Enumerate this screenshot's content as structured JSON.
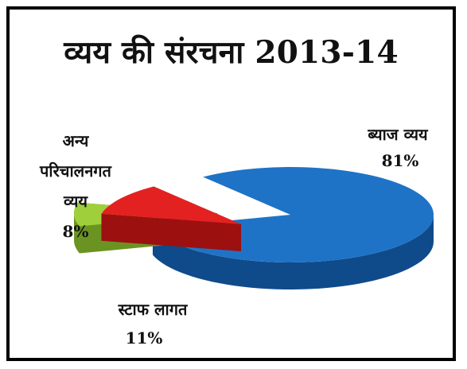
{
  "chart_data": {
    "type": "pie",
    "title": "व्यय की संरचना 2013-14",
    "style": "3d-exploded",
    "slices": [
      {
        "label": "ब्याज व्यय",
        "value": 81,
        "percent_label": "81%",
        "color": "#1f73c6",
        "side_color": "#0f4b8a"
      },
      {
        "label": "स्टाफ लागत",
        "value": 11,
        "percent_label": "11%",
        "color": "#e32121",
        "side_color": "#9c1010"
      },
      {
        "label": "अन्य परिचालनगत व्यय",
        "label_lines": [
          "अन्य",
          "परिचालनगत",
          "व्यय"
        ],
        "value": 8,
        "percent_label": "8%",
        "color": "#9fcf3a",
        "side_color": "#6b9322"
      }
    ]
  }
}
